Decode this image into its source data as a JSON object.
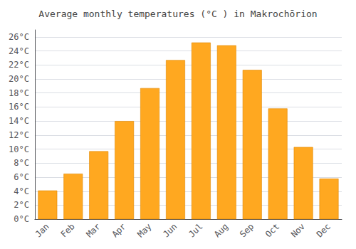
{
  "chart_data": {
    "type": "bar",
    "title": "Average monthly temperatures (°C ) in Makrochōrion",
    "categories": [
      "Jan",
      "Feb",
      "Mar",
      "Apr",
      "May",
      "Jun",
      "Jul",
      "Aug",
      "Sep",
      "Oct",
      "Nov",
      "Dec"
    ],
    "values": [
      4.1,
      6.5,
      9.7,
      14.0,
      18.7,
      22.7,
      25.2,
      24.8,
      21.3,
      15.8,
      10.3,
      5.8
    ],
    "color": "#FFA820",
    "ylim": [
      0,
      27
    ],
    "yticks": [
      {
        "value": 0,
        "label": "0°C"
      },
      {
        "value": 2,
        "label": "2°C"
      },
      {
        "value": 4,
        "label": "4°C"
      },
      {
        "value": 6,
        "label": "6°C"
      },
      {
        "value": 8,
        "label": "8°C"
      },
      {
        "value": 10,
        "label": "10°C"
      },
      {
        "value": 12,
        "label": "12°C"
      },
      {
        "value": 14,
        "label": "14°C"
      },
      {
        "value": 16,
        "label": "16°C"
      },
      {
        "value": 18,
        "label": "18°C"
      },
      {
        "value": 20,
        "label": "20°C"
      },
      {
        "value": 22,
        "label": "22°C"
      },
      {
        "value": 24,
        "label": "24°C"
      },
      {
        "value": 26,
        "label": "26°C"
      }
    ],
    "grid": true
  }
}
